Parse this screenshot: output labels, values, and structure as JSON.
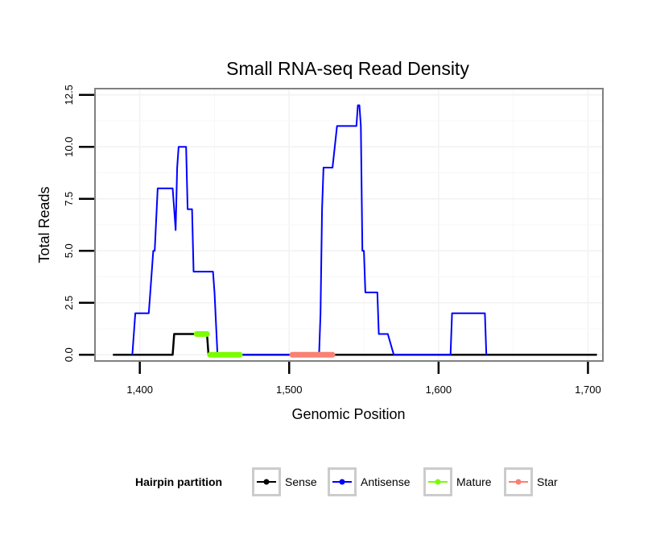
{
  "chart_data": {
    "type": "line",
    "title": "Small RNA-seq Read Density",
    "xlabel": "Genomic Position",
    "ylabel": "Total Reads",
    "xlim": [
      1370,
      1710
    ],
    "ylim": [
      -0.3,
      12.8
    ],
    "x_ticks": [
      1400,
      1500,
      1600,
      1700
    ],
    "x_tick_labels": [
      "1,400",
      "1,500",
      "1,600",
      "1,700"
    ],
    "y_ticks": [
      0,
      2.5,
      5,
      7.5,
      10,
      12.5
    ],
    "y_tick_labels": [
      "0.0",
      "2.5",
      "5.0",
      "7.5",
      "10.0",
      "12.5"
    ],
    "grid": true,
    "legend": {
      "title": "Hairpin partition",
      "position": "bottom",
      "entries": [
        {
          "name": "Sense",
          "color": "#000000"
        },
        {
          "name": "Antisense",
          "color": "#0000ff"
        },
        {
          "name": "Mature",
          "color": "#7cfc00"
        },
        {
          "name": "Star",
          "color": "#fa8072"
        }
      ]
    },
    "series": [
      {
        "name": "Sense",
        "color": "#000000",
        "width": 2.5,
        "x": [
          1382,
          1422,
          1423,
          1441,
          1445,
          1446,
          1706
        ],
        "y": [
          0,
          0,
          1,
          1,
          1,
          0,
          0
        ]
      },
      {
        "name": "Antisense",
        "color": "#0000ff",
        "width": 2,
        "x": [
          1395,
          1397,
          1406,
          1407,
          1409,
          1410,
          1412,
          1422,
          1423,
          1424,
          1425,
          1426,
          1431,
          1432,
          1435,
          1436,
          1449,
          1450,
          1452,
          1520,
          1521,
          1522,
          1523,
          1529,
          1532,
          1545,
          1546,
          1547,
          1548,
          1549,
          1550,
          1551,
          1559,
          1560,
          1566,
          1570,
          1608,
          1609,
          1631,
          1632
        ],
        "y": [
          0,
          2,
          2,
          3,
          5,
          5,
          8,
          8,
          7,
          6,
          9,
          10,
          10,
          7,
          7,
          4,
          4,
          3,
          0,
          0,
          2,
          7,
          9,
          9,
          11,
          11,
          12,
          12,
          11,
          5,
          5,
          3,
          3,
          1,
          1,
          0,
          0,
          2,
          2,
          0
        ]
      },
      {
        "name": "Mature",
        "color": "#7cfc00",
        "width": 7,
        "x": [
          1438,
          1445
        ],
        "y": [
          1,
          1
        ]
      },
      {
        "name": "Mature",
        "color": "#7cfc00",
        "width": 7,
        "x": [
          1447,
          1467
        ],
        "y": [
          0,
          0
        ]
      },
      {
        "name": "Star",
        "color": "#fa8072",
        "width": 7,
        "x": [
          1502,
          1529
        ],
        "y": [
          0,
          0
        ]
      }
    ]
  }
}
